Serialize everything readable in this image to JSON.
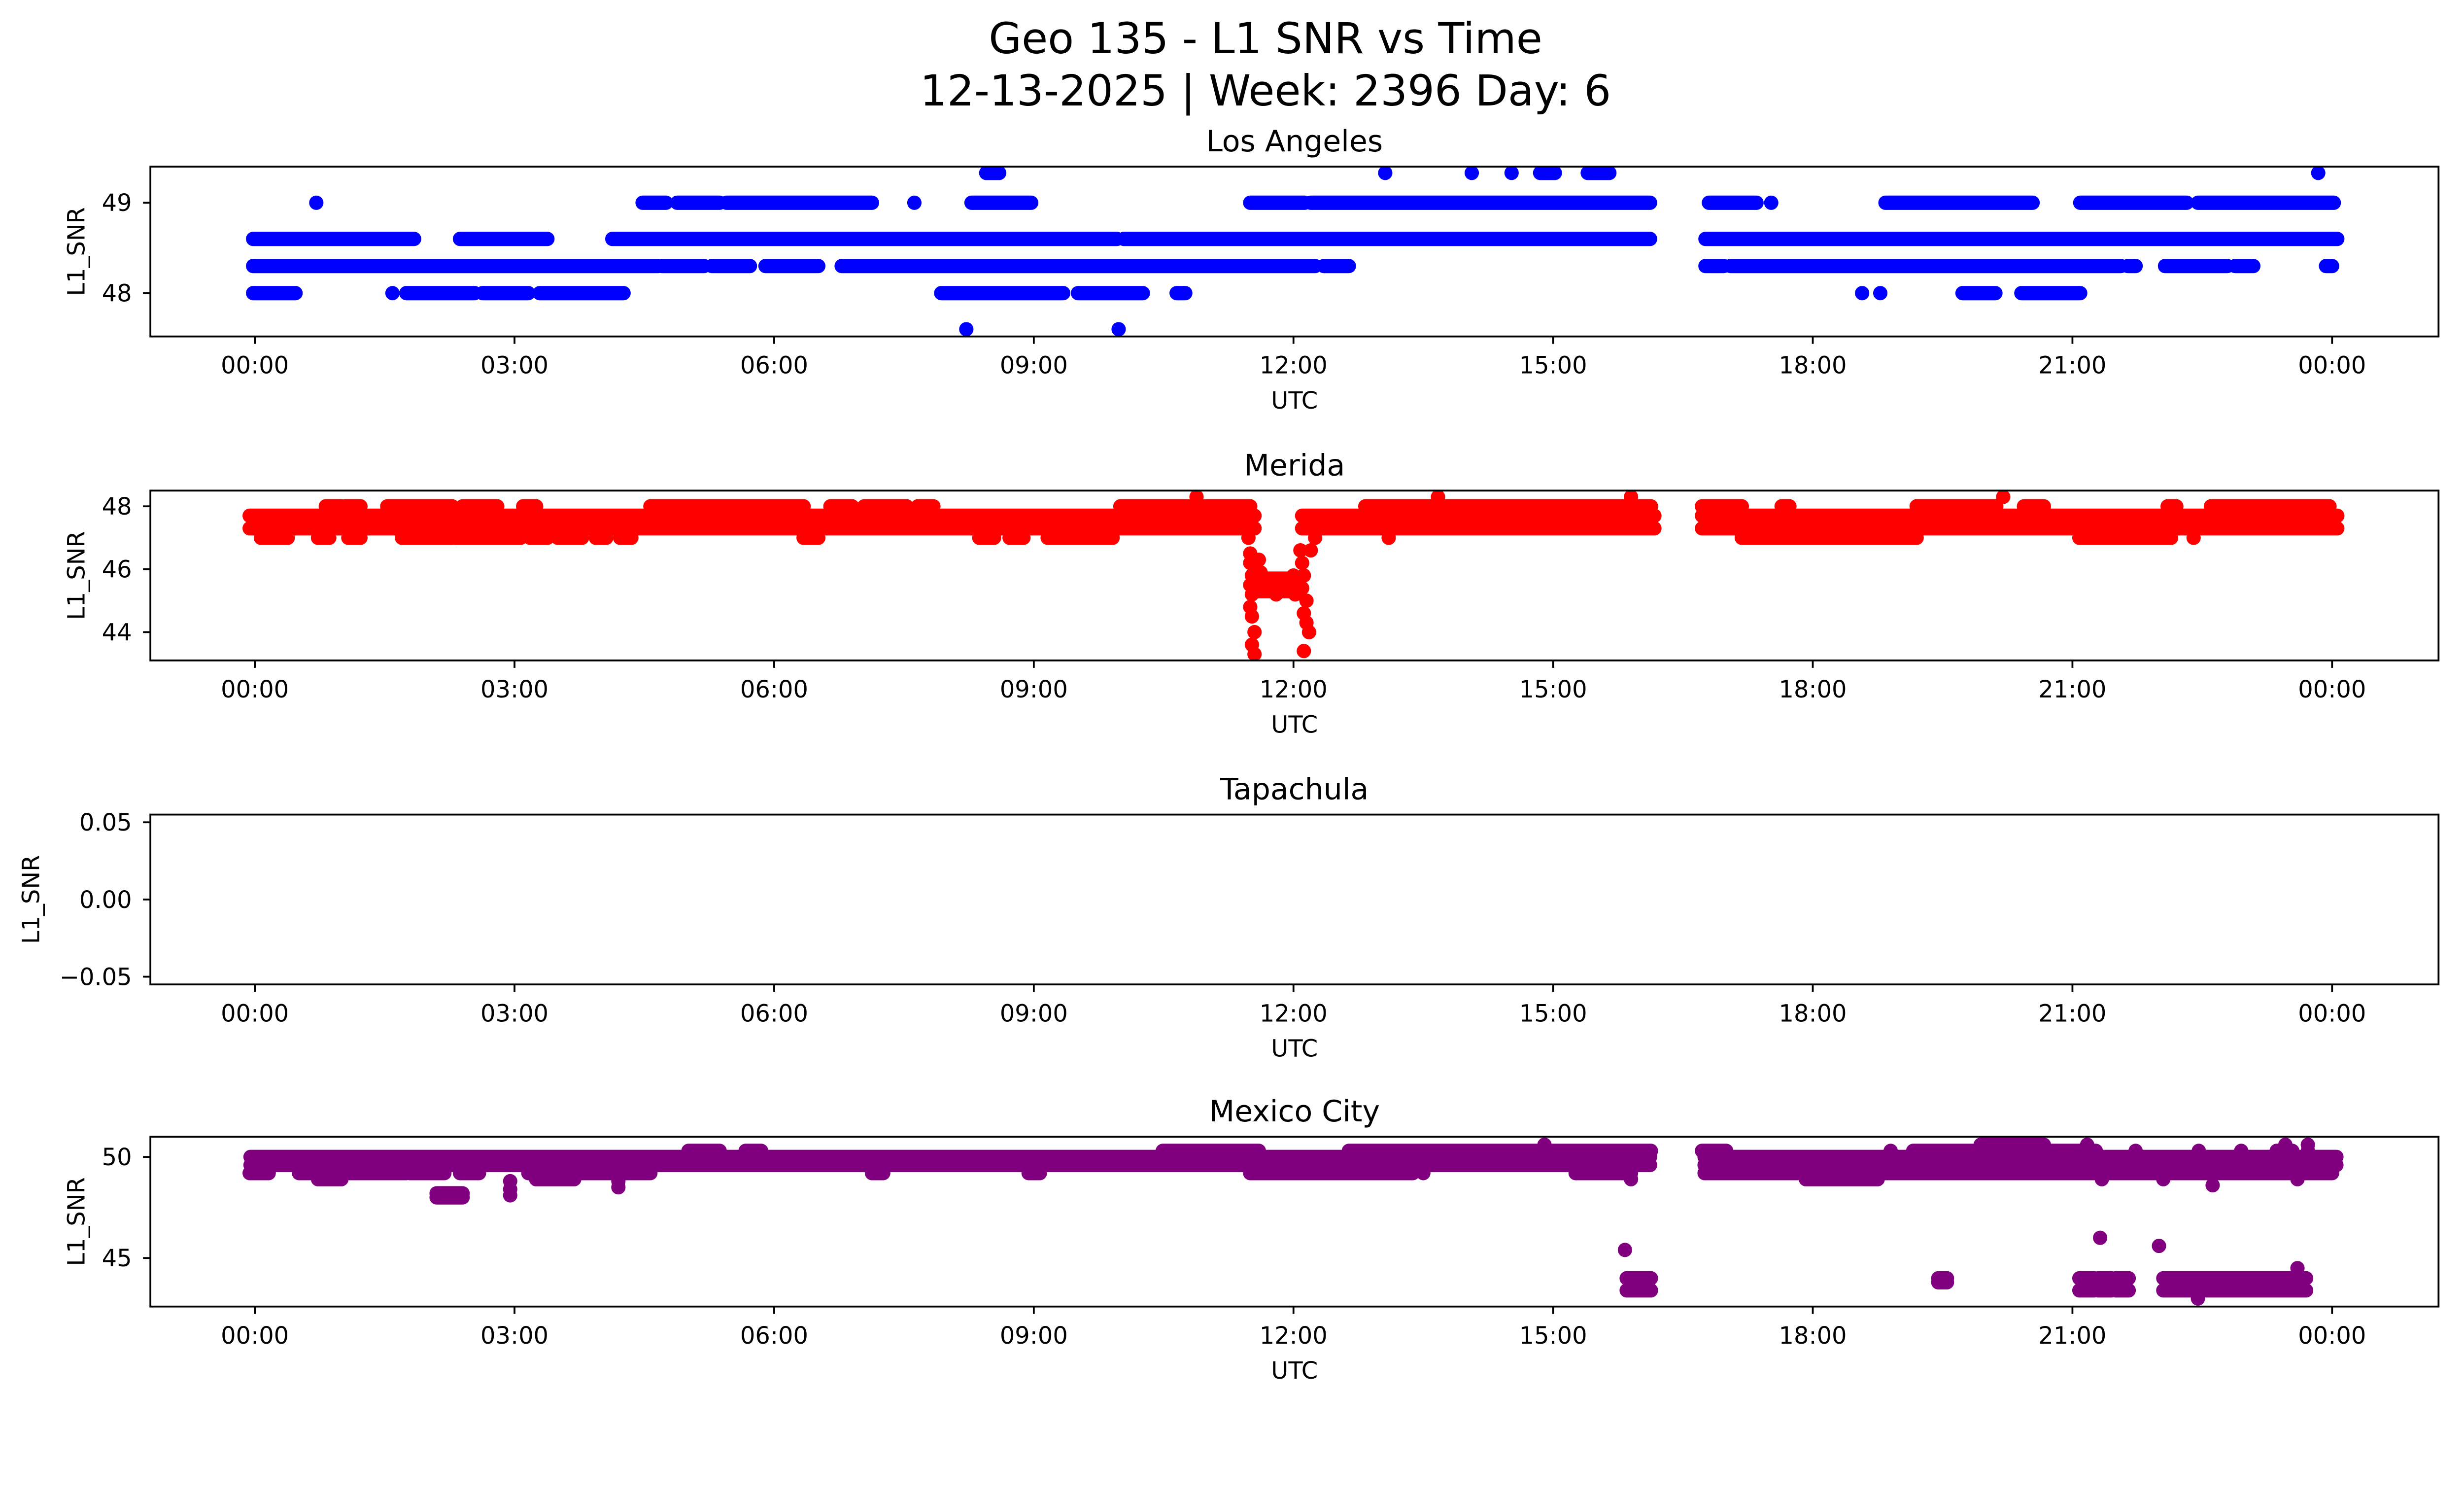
{
  "chart_data": {
    "type": "scatter",
    "title": "Geo 135 - L1 SNR vs Time",
    "subtitle": "12-13-2025 | Week: 2396 Day: 6",
    "x_units": "hours UTC since 00:00",
    "xlim": [
      -1.207,
      25.23
    ],
    "xticks": [
      0,
      3,
      6,
      9,
      12,
      15,
      18,
      21,
      24
    ],
    "xtick_labels": [
      "00:00",
      "03:00",
      "06:00",
      "09:00",
      "12:00",
      "15:00",
      "18:00",
      "21:00",
      "00:00"
    ],
    "xlabel": "UTC",
    "ylabel": "L1_SNR",
    "grid": false,
    "panels": [
      {
        "title": "Los Angeles",
        "color": "#0000ff",
        "ylim": [
          47.52,
          49.4
        ],
        "yticks": [
          48,
          49
        ],
        "ytick_labels": [
          "48",
          "49"
        ],
        "runs": [
          [
            49.0,
            0.71,
            0.71
          ],
          [
            49.0,
            4.48,
            4.75
          ],
          [
            49.0,
            4.88,
            5.37
          ],
          [
            49.0,
            5.45,
            7.13
          ],
          [
            49.0,
            7.62,
            7.62
          ],
          [
            49.0,
            8.28,
            8.97
          ],
          [
            49.0,
            11.5,
            12.13
          ],
          [
            49.0,
            12.2,
            16.12
          ],
          [
            49.0,
            16.8,
            17.35
          ],
          [
            49.0,
            17.52,
            17.52
          ],
          [
            49.0,
            18.84,
            20.54
          ],
          [
            49.0,
            21.09,
            22.32
          ],
          [
            49.0,
            22.45,
            24.02
          ],
          [
            49.33,
            8.45,
            8.6
          ],
          [
            49.33,
            13.06,
            13.06
          ],
          [
            49.33,
            14.06,
            14.06
          ],
          [
            49.33,
            14.52,
            14.52
          ],
          [
            49.33,
            14.85,
            15.02
          ],
          [
            49.33,
            15.4,
            15.65
          ],
          [
            49.33,
            23.84,
            23.84
          ],
          [
            48.6,
            -0.02,
            1.84
          ],
          [
            48.6,
            2.37,
            3.38
          ],
          [
            48.6,
            4.13,
            9.96
          ],
          [
            48.6,
            10.04,
            16.12
          ],
          [
            48.6,
            16.76,
            24.06
          ],
          [
            48.3,
            -0.02,
            4.66
          ],
          [
            48.3,
            4.7,
            5.19
          ],
          [
            48.3,
            5.28,
            5.72
          ],
          [
            48.3,
            5.9,
            6.51
          ],
          [
            48.3,
            6.78,
            12.25
          ],
          [
            48.3,
            12.35,
            12.64
          ],
          [
            48.3,
            16.76,
            16.97
          ],
          [
            48.3,
            17.05,
            21.56
          ],
          [
            48.3,
            21.64,
            21.73
          ],
          [
            48.3,
            22.07,
            22.79
          ],
          [
            48.3,
            22.88,
            23.09
          ],
          [
            48.3,
            23.93,
            24.0
          ],
          [
            48.0,
            -0.02,
            0.47
          ],
          [
            48.0,
            1.59,
            1.59
          ],
          [
            48.0,
            1.75,
            2.54
          ],
          [
            48.0,
            2.63,
            3.16
          ],
          [
            48.0,
            3.29,
            4.26
          ],
          [
            48.0,
            7.93,
            9.34
          ],
          [
            48.0,
            9.51,
            10.26
          ],
          [
            48.0,
            10.65,
            10.75
          ],
          [
            48.0,
            18.57,
            18.57
          ],
          [
            48.0,
            18.78,
            18.78
          ],
          [
            48.0,
            19.73,
            20.11
          ],
          [
            48.0,
            20.41,
            21.09
          ],
          [
            47.6,
            8.22,
            8.22
          ],
          [
            47.6,
            9.98,
            9.98
          ]
        ],
        "points": []
      },
      {
        "title": "Merida",
        "color": "#ff0000",
        "ylim": [
          43.1,
          48.5
        ],
        "yticks": [
          44,
          46,
          48
        ],
        "ytick_labels": [
          "44",
          "46",
          "48"
        ],
        "runs": [
          [
            47.7,
            -0.06,
            11.55
          ],
          [
            47.7,
            12.1,
            16.17
          ],
          [
            47.7,
            16.72,
            24.06
          ],
          [
            47.3,
            -0.06,
            11.55
          ],
          [
            47.3,
            12.1,
            16.17
          ],
          [
            47.3,
            16.72,
            24.06
          ],
          [
            48.0,
            0.82,
            1.0
          ],
          [
            48.0,
            1.04,
            1.22
          ],
          [
            48.0,
            1.53,
            2.28
          ],
          [
            48.0,
            2.4,
            2.8
          ],
          [
            48.0,
            3.1,
            3.25
          ],
          [
            48.0,
            4.57,
            6.34
          ],
          [
            48.0,
            6.65,
            6.9
          ],
          [
            48.0,
            7.04,
            7.53
          ],
          [
            48.0,
            7.66,
            7.84
          ],
          [
            48.0,
            10.0,
            11.5
          ],
          [
            48.0,
            12.83,
            16.13
          ],
          [
            48.0,
            16.72,
            17.18
          ],
          [
            48.0,
            17.64,
            17.73
          ],
          [
            48.0,
            19.2,
            20.12
          ],
          [
            48.0,
            20.44,
            20.67
          ],
          [
            48.0,
            22.1,
            22.2
          ],
          [
            48.0,
            22.6,
            23.97
          ],
          [
            48.3,
            10.88,
            10.88
          ],
          [
            48.3,
            13.67,
            13.67
          ],
          [
            48.3,
            15.9,
            15.9
          ],
          [
            48.3,
            20.2,
            20.2
          ],
          [
            47.0,
            0.07,
            0.38
          ],
          [
            47.0,
            0.73,
            0.86
          ],
          [
            47.0,
            1.08,
            1.22
          ],
          [
            47.0,
            1.7,
            2.28
          ],
          [
            47.0,
            2.32,
            3.07
          ],
          [
            47.0,
            3.18,
            3.38
          ],
          [
            47.0,
            3.5,
            3.78
          ],
          [
            47.0,
            3.94,
            4.06
          ],
          [
            47.0,
            4.22,
            4.35
          ],
          [
            47.0,
            6.34,
            6.51
          ],
          [
            47.0,
            8.37,
            8.54
          ],
          [
            47.0,
            8.72,
            8.88
          ],
          [
            47.0,
            9.16,
            9.91
          ],
          [
            47.0,
            13.1,
            13.1
          ],
          [
            47.0,
            17.18,
            19.2
          ],
          [
            47.0,
            21.08,
            22.14
          ],
          [
            47.0,
            22.4,
            22.4
          ],
          [
            45.3,
            11.55,
            12.05
          ],
          [
            45.7,
            11.55,
            12.05
          ]
        ],
        "points": [
          [
            11.48,
            47.0
          ],
          [
            11.5,
            46.5
          ],
          [
            11.5,
            46.2
          ],
          [
            11.52,
            45.8
          ],
          [
            11.5,
            45.5
          ],
          [
            11.52,
            45.2
          ],
          [
            11.5,
            44.8
          ],
          [
            11.52,
            44.5
          ],
          [
            11.55,
            44.0
          ],
          [
            11.52,
            43.6
          ],
          [
            11.55,
            43.3
          ],
          [
            11.6,
            46.3
          ],
          [
            11.62,
            45.9
          ],
          [
            11.65,
            45.5
          ],
          [
            11.7,
            45.3
          ],
          [
            11.75,
            45.6
          ],
          [
            11.8,
            45.2
          ],
          [
            11.85,
            45.5
          ],
          [
            11.9,
            45.3
          ],
          [
            11.95,
            45.6
          ],
          [
            12.0,
            45.8
          ],
          [
            12.02,
            45.2
          ],
          [
            12.08,
            46.6
          ],
          [
            12.1,
            46.2
          ],
          [
            12.12,
            45.8
          ],
          [
            12.1,
            45.4
          ],
          [
            12.15,
            45.0
          ],
          [
            12.12,
            44.6
          ],
          [
            12.15,
            44.3
          ],
          [
            12.18,
            44.0
          ],
          [
            12.12,
            43.4
          ],
          [
            12.2,
            46.6
          ],
          [
            12.25,
            47.0
          ]
        ]
      },
      {
        "title": "Tapachula",
        "color": "#0000ff",
        "ylim": [
          -0.055,
          0.055
        ],
        "yticks": [
          -0.05,
          0.0,
          0.05
        ],
        "ytick_labels": [
          "−0.05",
          "0.00",
          "0.05"
        ],
        "runs": [],
        "points": []
      },
      {
        "title": "Mexico City",
        "color": "#800080",
        "ylim": [
          42.6,
          51.0
        ],
        "yticks": [
          45,
          50
        ],
        "ytick_labels": [
          "45",
          "50"
        ],
        "runs": [
          [
            50.0,
            -0.05,
            16.12
          ],
          [
            50.0,
            16.75,
            24.05
          ],
          [
            49.6,
            -0.05,
            16.12
          ],
          [
            49.6,
            16.75,
            24.05
          ],
          [
            50.3,
            5.01,
            5.37
          ],
          [
            50.3,
            5.67,
            5.85
          ],
          [
            50.3,
            10.49,
            11.6
          ],
          [
            50.3,
            12.64,
            16.13
          ],
          [
            50.3,
            16.72,
            17.0
          ],
          [
            50.3,
            18.9,
            18.9
          ],
          [
            50.3,
            19.16,
            21.27
          ],
          [
            50.3,
            21.73,
            21.73
          ],
          [
            50.3,
            22.46,
            22.46
          ],
          [
            50.3,
            22.95,
            22.95
          ],
          [
            50.3,
            23.36,
            23.54
          ],
          [
            50.3,
            23.72,
            23.72
          ],
          [
            50.6,
            14.9,
            14.9
          ],
          [
            50.6,
            19.94,
            20.67
          ],
          [
            50.6,
            21.17,
            21.17
          ],
          [
            50.6,
            23.46,
            23.46
          ],
          [
            50.6,
            23.72,
            23.72
          ],
          [
            49.2,
            -0.06,
            0.16
          ],
          [
            49.2,
            0.51,
            0.69
          ],
          [
            49.2,
            0.73,
            1.0
          ],
          [
            49.2,
            1.09,
            1.75
          ],
          [
            49.2,
            1.79,
            2.19
          ],
          [
            49.2,
            2.37,
            2.59
          ],
          [
            49.2,
            3.16,
            3.6
          ],
          [
            49.2,
            3.73,
            4.57
          ],
          [
            49.2,
            7.13,
            7.26
          ],
          [
            49.2,
            8.94,
            9.07
          ],
          [
            49.2,
            11.5,
            13.38
          ],
          [
            49.2,
            13.5,
            13.5
          ],
          [
            49.2,
            15.26,
            15.9
          ],
          [
            49.2,
            16.75,
            24.0
          ],
          [
            48.9,
            0.73,
            1.0
          ],
          [
            48.9,
            3.25,
            3.69
          ],
          [
            48.9,
            15.9,
            15.9
          ],
          [
            48.9,
            17.92,
            18.75
          ],
          [
            48.9,
            21.34,
            21.34
          ],
          [
            48.9,
            22.05,
            22.05
          ],
          [
            48.9,
            23.6,
            23.6
          ],
          [
            48.2,
            2.1,
            2.4
          ],
          [
            48.0,
            2.1,
            2.4
          ],
          [
            44.0,
            15.85,
            16.13
          ],
          [
            43.4,
            15.85,
            16.13
          ],
          [
            44.0,
            19.45,
            19.55
          ],
          [
            43.8,
            19.45,
            19.55
          ],
          [
            44.0,
            21.08,
            21.25
          ],
          [
            43.4,
            21.08,
            21.25
          ],
          [
            44.0,
            21.3,
            21.45
          ],
          [
            43.4,
            21.3,
            21.45
          ],
          [
            44.0,
            21.5,
            21.65
          ],
          [
            43.4,
            21.5,
            21.65
          ],
          [
            44.0,
            22.05,
            23.7
          ],
          [
            43.4,
            22.05,
            23.7
          ]
        ],
        "points": [
          [
            2.95,
            48.8
          ],
          [
            2.95,
            48.4
          ],
          [
            2.95,
            48.1
          ],
          [
            4.2,
            48.8
          ],
          [
            4.2,
            48.5
          ],
          [
            15.83,
            45.4
          ],
          [
            21.32,
            46.0
          ],
          [
            22.0,
            45.6
          ],
          [
            22.45,
            43.0
          ],
          [
            23.6,
            44.5
          ],
          [
            22.62,
            48.6
          ]
        ]
      }
    ]
  }
}
